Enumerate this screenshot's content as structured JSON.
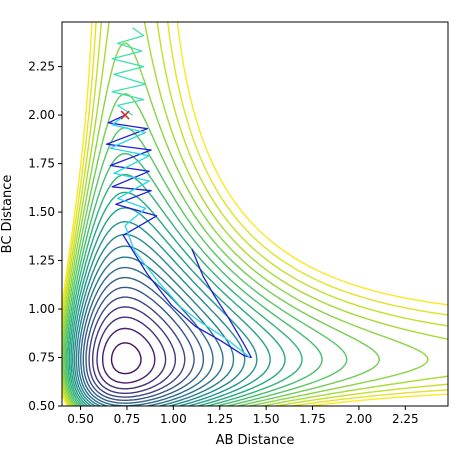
{
  "chart_data": {
    "type": "contour",
    "xlabel": "AB Distance",
    "ylabel": "BC Distance",
    "xlim": [
      0.4,
      2.48
    ],
    "ylim": [
      0.5,
      2.48
    ],
    "xticks": [
      0.5,
      0.75,
      1.0,
      1.25,
      1.5,
      1.75,
      2.0,
      2.25
    ],
    "yticks": [
      0.5,
      0.75,
      1.0,
      1.25,
      1.5,
      1.75,
      2.0,
      2.25
    ],
    "x_tick_labels": [
      "0.50",
      "0.75",
      "1.00",
      "1.25",
      "1.50",
      "1.75",
      "2.00",
      "2.25"
    ],
    "y_tick_labels": [
      "0.50",
      "0.75",
      "1.00",
      "1.25",
      "1.50",
      "1.75",
      "2.00",
      "2.25"
    ],
    "grid": false,
    "legend": "none",
    "colormap": "viridis",
    "contour_levels": [
      -20.5,
      -19.5,
      -18.5,
      -17.5,
      -16.5,
      -15.5,
      -14.5,
      -13.5,
      -12.5,
      -11.5,
      -10.5,
      -9.5,
      -8.5,
      -7.5,
      -6.5,
      -5.5,
      -4.5,
      -3.5,
      -2.5,
      -1.5,
      -0.5,
      0.5,
      1.5,
      2.5
    ],
    "surface": {
      "De": 20,
      "re_ab": 0.74,
      "re_bc": 0.74,
      "alpha": 2.0,
      "coupling": 0.8
    },
    "start_marker": {
      "x": 0.74,
      "y": 2.0,
      "symbol": "x",
      "color": "#d62728"
    },
    "trajectories": [
      {
        "color": "#1f1fd6",
        "points": [
          [
            0.74,
            2.0
          ],
          [
            0.65,
            1.96
          ],
          [
            0.86,
            1.93
          ],
          [
            0.64,
            1.85
          ],
          [
            0.88,
            1.82
          ],
          [
            0.66,
            1.74
          ],
          [
            0.87,
            1.71
          ],
          [
            0.67,
            1.63
          ],
          [
            0.88,
            1.61
          ],
          [
            0.69,
            1.54
          ],
          [
            0.91,
            1.48
          ],
          [
            0.73,
            1.38
          ],
          [
            0.86,
            1.18
          ],
          [
            0.99,
            1.02
          ],
          [
            1.12,
            0.91
          ],
          [
            1.25,
            0.84
          ],
          [
            1.38,
            0.76
          ],
          [
            1.42,
            0.75
          ],
          [
            1.38,
            0.82
          ],
          [
            1.3,
            0.95
          ],
          [
            1.22,
            1.07
          ],
          [
            1.16,
            1.17
          ],
          [
            1.1,
            1.31
          ]
        ]
      },
      {
        "color": "#2ad6e6",
        "points": [
          [
            0.74,
            2.0
          ],
          [
            0.67,
            1.95
          ],
          [
            0.85,
            1.91
          ],
          [
            0.66,
            1.83
          ],
          [
            0.87,
            1.79
          ],
          [
            0.68,
            1.7
          ],
          [
            0.87,
            1.66
          ],
          [
            0.7,
            1.57
          ],
          [
            0.85,
            1.52
          ],
          [
            0.74,
            1.43
          ],
          [
            0.79,
            1.3
          ],
          [
            0.92,
            1.14
          ],
          [
            1.04,
            1.01
          ],
          [
            1.15,
            0.93
          ],
          [
            1.28,
            0.85
          ],
          [
            1.4,
            0.76
          ],
          [
            1.41,
            0.75
          ]
        ]
      },
      {
        "color": "#3fe0b0",
        "points": [
          [
            0.78,
            2.45
          ],
          [
            0.84,
            2.41
          ],
          [
            0.7,
            2.37
          ],
          [
            0.83,
            2.33
          ],
          [
            0.67,
            2.29
          ],
          [
            0.84,
            2.25
          ],
          [
            0.68,
            2.21
          ],
          [
            0.85,
            2.16
          ],
          [
            0.67,
            2.12
          ],
          [
            0.84,
            2.08
          ],
          [
            0.7,
            2.05
          ],
          [
            0.78,
            2.0
          ]
        ]
      }
    ]
  }
}
